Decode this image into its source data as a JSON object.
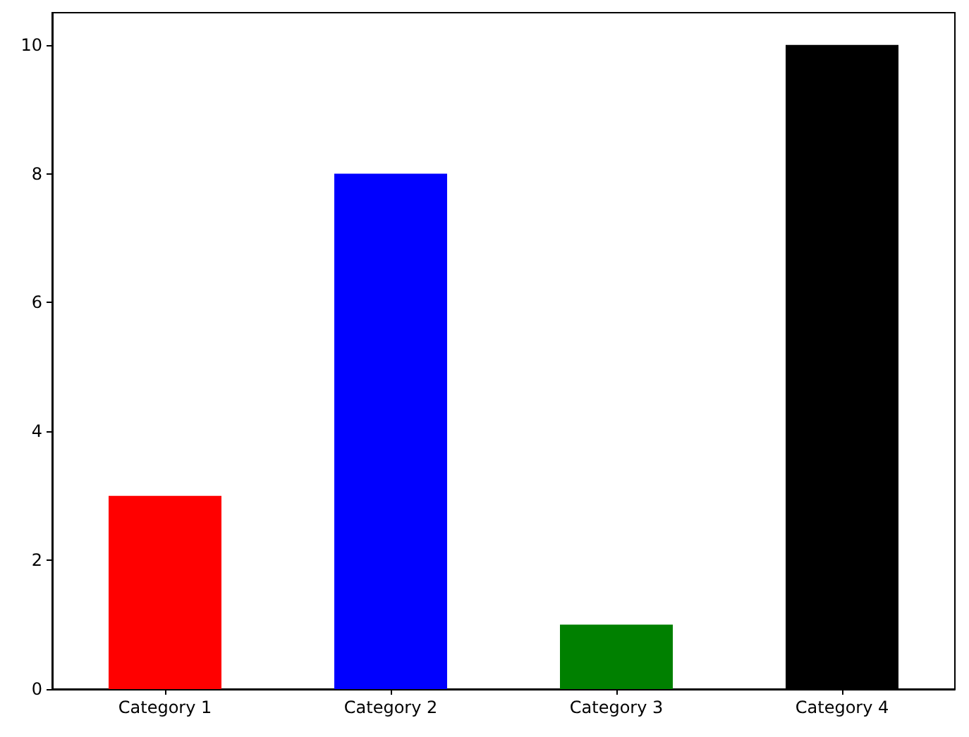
{
  "chart_data": {
    "type": "bar",
    "categories": [
      "Category 1",
      "Category 2",
      "Category 3",
      "Category 4"
    ],
    "values": [
      3,
      8,
      1,
      10
    ],
    "colors": [
      "#ff0000",
      "#0000ff",
      "#008000",
      "#000000"
    ],
    "ylim": [
      0,
      10.5
    ],
    "yticks": [
      0,
      2,
      4,
      6,
      8,
      10
    ]
  }
}
